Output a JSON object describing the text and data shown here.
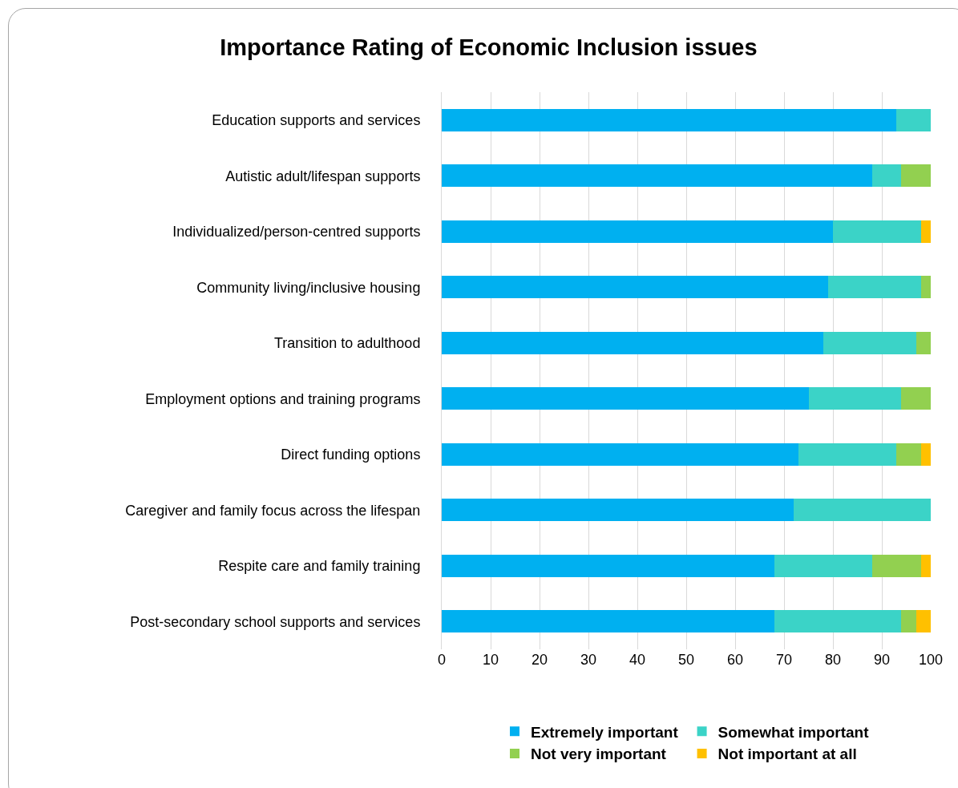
{
  "chart_data": {
    "type": "bar",
    "title": "Importance Rating of Economic Inclusion issues",
    "orientation": "horizontal",
    "stacked": true,
    "categories": [
      "Education supports and services",
      "Autistic adult/lifespan supports",
      "Individualized/person-centred supports",
      "Community living/inclusive housing",
      "Transition to adulthood",
      "Employment options and training programs",
      "Direct funding options",
      "Caregiver and family focus across the lifespan",
      "Respite care and family training",
      "Post-secondary school supports and services"
    ],
    "series": [
      {
        "name": "Extremely important",
        "color": "#00b0f0",
        "values": [
          93,
          88,
          80,
          79,
          78,
          75,
          73,
          72,
          68,
          68
        ]
      },
      {
        "name": "Somewhat important",
        "color": "#3bd3c7",
        "values": [
          7,
          6,
          18,
          19,
          19,
          19,
          20,
          28,
          20,
          26
        ]
      },
      {
        "name": "Not very important",
        "color": "#92d050",
        "values": [
          null,
          6,
          null,
          2,
          3,
          6,
          5,
          null,
          10,
          3
        ]
      },
      {
        "name": "Not important at all",
        "color": "#ffc000",
        "values": [
          null,
          null,
          2,
          null,
          null,
          null,
          2,
          null,
          2,
          3
        ]
      }
    ],
    "xlim": [
      0,
      100
    ],
    "xticks": [
      0,
      10,
      20,
      30,
      40,
      50,
      60,
      70,
      80,
      90,
      100
    ],
    "grid": "x",
    "legend": "bottom"
  }
}
